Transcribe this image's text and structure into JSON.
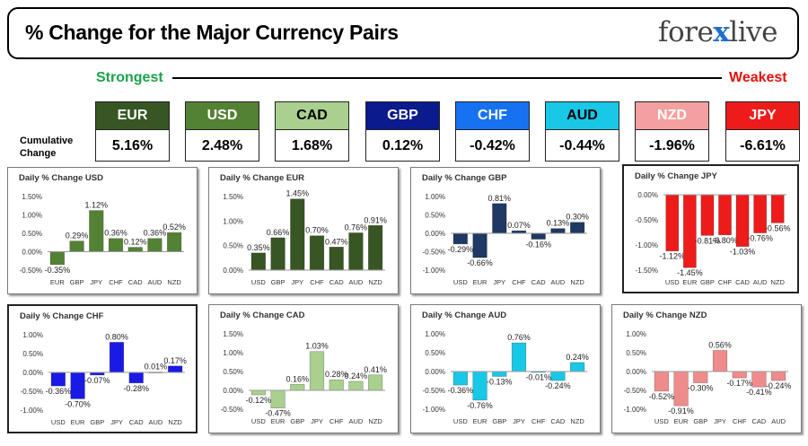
{
  "header": {
    "title": "% Change for the Major Currency Pairs",
    "logo_left": "fore",
    "logo_x": "x",
    "logo_right": "live"
  },
  "strength": {
    "strongest": "Strongest",
    "weakest": "Weakest",
    "cumulative_label": "Cumulative Change"
  },
  "currencies": [
    {
      "name": "EUR",
      "value": "5.16%",
      "color": "#375623",
      "text_color": "#ffffff"
    },
    {
      "name": "USD",
      "value": "2.48%",
      "color": "#548235",
      "text_color": "#ffffff"
    },
    {
      "name": "CAD",
      "value": "1.68%",
      "color": "#a9d08e",
      "text_color": "#000000"
    },
    {
      "name": "GBP",
      "value": "0.12%",
      "color": "#0b1a8c",
      "text_color": "#ffffff"
    },
    {
      "name": "CHF",
      "value": "-0.42%",
      "color": "#1672f0",
      "text_color": "#ffffff"
    },
    {
      "name": "AUD",
      "value": "-0.44%",
      "color": "#18c8e6",
      "text_color": "#000000"
    },
    {
      "name": "NZD",
      "value": "-1.96%",
      "color": "#f4a0a0",
      "text_color": "#ffffff"
    },
    {
      "name": "JPY",
      "value": "-6.61%",
      "color": "#ee1b1b",
      "text_color": "#ffffff"
    }
  ],
  "chart_data": [
    {
      "type": "bar",
      "title": "Daily % Change USD",
      "categories": [
        "EUR",
        "GBP",
        "JPY",
        "CHF",
        "CAD",
        "AUD",
        "NZD"
      ],
      "values": [
        -0.35,
        0.29,
        1.12,
        0.36,
        0.12,
        0.36,
        0.52
      ],
      "labels": [
        "-0.35%",
        "0.29%",
        "1.12%",
        "0.36%",
        "0.12%",
        "0.36%",
        "0.52%"
      ],
      "color": "#548235",
      "ylim": [
        -0.5,
        1.5
      ],
      "yticks": [
        "1.50%",
        "1.00%",
        "0.50%",
        "0.00%",
        "-0.50%"
      ]
    },
    {
      "type": "bar",
      "title": "Daily % Change EUR",
      "categories": [
        "USD",
        "GBP",
        "JPY",
        "CHF",
        "CAD",
        "AUD",
        "NZD"
      ],
      "values": [
        0.35,
        0.66,
        1.45,
        0.7,
        0.47,
        0.76,
        0.91
      ],
      "labels": [
        "0.35%",
        "0.66%",
        "1.45%",
        "0.70%",
        "0.47%",
        "0.76%",
        "0.91%"
      ],
      "color": "#375623",
      "ylim": [
        0,
        1.5
      ],
      "yticks": [
        "1.50%",
        "1.00%",
        "0.50%",
        "0.00%"
      ]
    },
    {
      "type": "bar",
      "title": "Daily % Change GBP",
      "categories": [
        "USD",
        "EUR",
        "JPY",
        "CHF",
        "CAD",
        "AUD",
        "NZD"
      ],
      "values": [
        -0.29,
        -0.66,
        0.81,
        0.07,
        -0.16,
        0.13,
        0.3
      ],
      "labels": [
        "-0.29%",
        "-0.66%",
        "0.81%",
        "0.07%",
        "-0.16%",
        "0.13%",
        "0.30%"
      ],
      "color": "#1f3864",
      "ylim": [
        -1.0,
        1.0
      ],
      "yticks": [
        "1.00%",
        "0.50%",
        "0.00%",
        "-0.50%",
        "-1.00%"
      ]
    },
    {
      "type": "bar",
      "title": "Daily % Change JPY",
      "categories": [
        "USD",
        "EUR",
        "GBP",
        "CHF",
        "CAD",
        "AUD",
        "NZD"
      ],
      "values": [
        -1.12,
        -1.45,
        -0.81,
        -0.8,
        -1.03,
        -0.76,
        -0.56
      ],
      "labels": [
        "-1.12%",
        "-1.45%",
        "-0.81%",
        "-0.80%",
        "-1.03%",
        "-0.76%",
        "-0.56%"
      ],
      "color": "#ee1b1b",
      "ylim": [
        -1.5,
        0
      ],
      "yticks": [
        "0.00%",
        "-0.50%",
        "-1.00%",
        "-1.50%"
      ]
    },
    {
      "type": "bar",
      "title": "Daily % Change CHF",
      "categories": [
        "USD",
        "EUR",
        "GBP",
        "JPY",
        "CAD",
        "AUD",
        "NZD"
      ],
      "values": [
        -0.36,
        -0.7,
        -0.07,
        0.8,
        -0.28,
        0.01,
        0.17
      ],
      "labels": [
        "-0.36%",
        "-0.70%",
        "-0.07%",
        "0.80%",
        "-0.28%",
        "0.01%",
        "0.17%"
      ],
      "color": "#1a1ae6",
      "ylim": [
        -1.0,
        1.0
      ],
      "yticks": [
        "1.00%",
        "0.50%",
        "0.00%",
        "-0.50%",
        "-1.00%"
      ]
    },
    {
      "type": "bar",
      "title": "Daily % Change CAD",
      "categories": [
        "USD",
        "EUR",
        "GBP",
        "JPY",
        "CHF",
        "AUD",
        "NZD"
      ],
      "values": [
        -0.12,
        -0.47,
        0.16,
        1.03,
        0.28,
        0.24,
        0.41
      ],
      "labels": [
        "-0.12%",
        "-0.47%",
        "0.16%",
        "1.03%",
        "0.28%",
        "0.24%",
        "0.41%"
      ],
      "color": "#a9d08e",
      "ylim": [
        -0.5,
        1.5
      ],
      "yticks": [
        "1.50%",
        "1.00%",
        "0.50%",
        "0.00%",
        "-0.50%"
      ]
    },
    {
      "type": "bar",
      "title": "Daily % Change AUD",
      "categories": [
        "USD",
        "EUR",
        "GBP",
        "JPY",
        "CHF",
        "CAD",
        "NZD"
      ],
      "values": [
        -0.36,
        -0.76,
        -0.13,
        0.76,
        -0.01,
        -0.24,
        0.24
      ],
      "labels": [
        "-0.36%",
        "-0.76%",
        "-0.13%",
        "0.76%",
        "-0.01%",
        "-0.24%",
        "0.24%"
      ],
      "color": "#18c8e6",
      "ylim": [
        -1.0,
        1.0
      ],
      "yticks": [
        "1.00%",
        "0.50%",
        "0.00%",
        "-0.50%",
        "-1.00%"
      ]
    },
    {
      "type": "bar",
      "title": "Daily % Change NZD",
      "categories": [
        "USD",
        "EUR",
        "GBP",
        "JPY",
        "CHF",
        "CAD",
        "AUD"
      ],
      "values": [
        -0.52,
        -0.91,
        -0.3,
        0.56,
        -0.17,
        -0.41,
        -0.24
      ],
      "labels": [
        "-0.52%",
        "-0.91%",
        "-0.30%",
        "0.56%",
        "-0.17%",
        "-0.41%",
        "-0.24%"
      ],
      "color": "#f08b8b",
      "ylim": [
        -1.0,
        1.0
      ],
      "yticks": [
        "1.00%",
        "0.50%",
        "0.00%",
        "-0.50%",
        "-1.00%"
      ]
    }
  ]
}
